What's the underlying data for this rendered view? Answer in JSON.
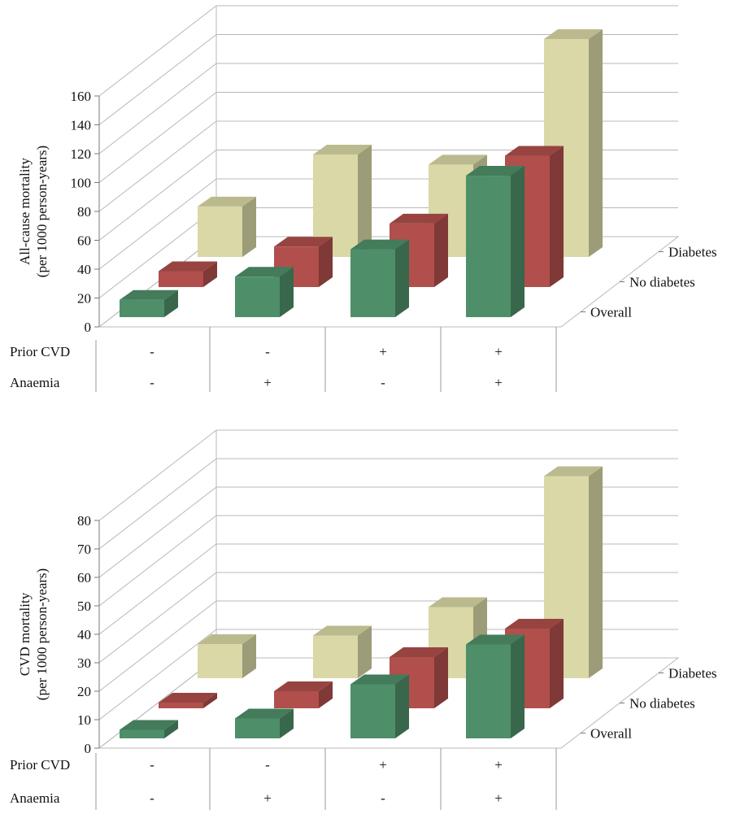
{
  "chart_data": [
    {
      "type": "bar",
      "ylabel_line1": "All-cause mortality",
      "ylabel_line2": "(per 1000 person-years)",
      "yticks": [
        0,
        20,
        40,
        60,
        80,
        100,
        120,
        140,
        160
      ],
      "ylim": [
        0,
        160
      ],
      "categories": [
        "Prior CVD -, Anaemia -",
        "Prior CVD -, Anaemia +",
        "Prior CVD +, Anaemia -",
        "Prior CVD +, Anaemia +"
      ],
      "row_labels": [
        {
          "label": "Prior CVD",
          "values": [
            "-",
            "-",
            "+",
            "+"
          ]
        },
        {
          "label": "Anaemia",
          "values": [
            "-",
            "+",
            "-",
            "+"
          ]
        }
      ],
      "series": [
        {
          "name": "Overall",
          "color": "#4e8f6a",
          "values": [
            12,
            28,
            47,
            98
          ]
        },
        {
          "name": "No diabetes",
          "color": "#b04f4c",
          "values": [
            11,
            28,
            44,
            91
          ]
        },
        {
          "name": "Diabetes",
          "color": "#d9d8a6",
          "values": [
            35,
            71,
            64,
            151
          ]
        }
      ]
    },
    {
      "type": "bar",
      "ylabel_line1": "CVD mortality",
      "ylabel_line2": "(per 1000 person-years)",
      "yticks": [
        0,
        10,
        20,
        30,
        40,
        50,
        60,
        70,
        80
      ],
      "ylim": [
        0,
        80
      ],
      "categories": [
        "Prior CVD -, Anaemia -",
        "Prior CVD -, Anaemia +",
        "Prior CVD +, Anaemia -",
        "Prior CVD +, Anaemia +"
      ],
      "row_labels": [
        {
          "label": "Prior CVD",
          "values": [
            "-",
            "-",
            "+",
            "+"
          ]
        },
        {
          "label": "Anaemia",
          "values": [
            "-",
            "+",
            "-",
            "+"
          ]
        }
      ],
      "series": [
        {
          "name": "Overall",
          "color": "#4e8f6a",
          "values": [
            3,
            7,
            19,
            33
          ]
        },
        {
          "name": "No diabetes",
          "color": "#b04f4c",
          "values": [
            2,
            6,
            18,
            28
          ]
        },
        {
          "name": "Diabetes",
          "color": "#d9d8a6",
          "values": [
            12,
            15,
            25,
            71
          ]
        }
      ]
    }
  ]
}
